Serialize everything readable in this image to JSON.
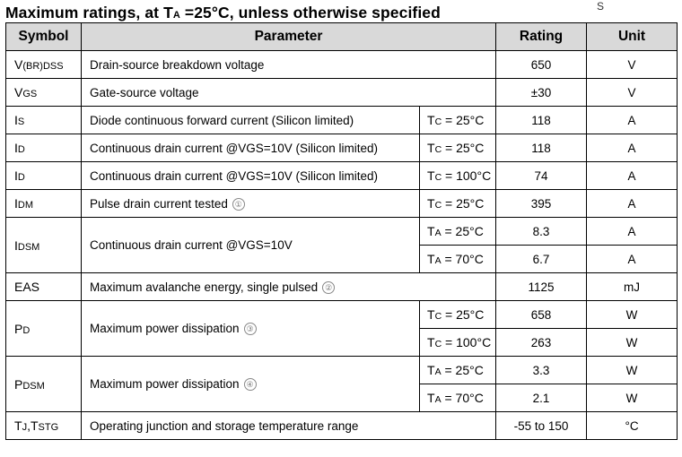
{
  "title": {
    "prefix": "Maximum ratings, at T",
    "sub": "A",
    "suffix": " =25°C, unless otherwise specified"
  },
  "corner_mark": "S",
  "headers": {
    "symbol": "Symbol",
    "parameter": "Parameter",
    "rating": "Rating",
    "unit": "Unit"
  },
  "rows": [
    {
      "sym": "V",
      "sym_sub": "(BR)DSS",
      "param": "Drain-source breakdown voltage",
      "rating": "650",
      "unit": "V"
    },
    {
      "sym": "V",
      "sym_sub": "GS",
      "param": "Gate-source voltage",
      "rating": "±30",
      "unit": "V"
    },
    {
      "sym": "I",
      "sym_sub": "S",
      "param": "Diode continuous forward current (Silicon limited)",
      "cond": "T",
      "cond_sub": "C",
      "cond_val": " = 25°C",
      "rating": "118",
      "unit": "A"
    },
    {
      "sym": "I",
      "sym_sub": "D",
      "param": "Continuous drain current @VGS=10V (Silicon limited)",
      "cond": "T",
      "cond_sub": "C",
      "cond_val": " = 25°C",
      "rating": "118",
      "unit": "A"
    },
    {
      "sym": "I",
      "sym_sub": "D",
      "param": "Continuous drain current @VGS=10V (Silicon limited)",
      "cond": "T",
      "cond_sub": "C",
      "cond_val": " = 100°C",
      "rating": "74",
      "unit": "A"
    },
    {
      "sym": "I",
      "sym_sub": "DM",
      "param": "Pulse drain current tested",
      "note": "1",
      "cond": "T",
      "cond_sub": "C",
      "cond_val": " = 25°C",
      "rating": "395",
      "unit": "A"
    },
    {
      "sym": "I",
      "sym_sub": "DSM",
      "param": "Continuous drain current @VGS=10V",
      "sub_rows": [
        {
          "cond": "T",
          "cond_sub": "A",
          "cond_val": " = 25°C",
          "rating": "8.3",
          "unit": "A"
        },
        {
          "cond": "T",
          "cond_sub": "A",
          "cond_val": " = 70°C",
          "rating": "6.7",
          "unit": "A"
        }
      ]
    },
    {
      "sym": "EAS",
      "sym_sub": "",
      "param": "Maximum avalanche energy, single pulsed",
      "note": "2",
      "rating": "1125",
      "unit": "mJ"
    },
    {
      "sym": "P",
      "sym_sub": "D",
      "param": "Maximum power dissipation",
      "note": "3",
      "sub_rows": [
        {
          "cond": "T",
          "cond_sub": "C",
          "cond_val": " = 25°C",
          "rating": "658",
          "unit": "W"
        },
        {
          "cond": "T",
          "cond_sub": "C",
          "cond_val": " = 100°C",
          "rating": "263",
          "unit": "W"
        }
      ]
    },
    {
      "sym": "P",
      "sym_sub": "DSM",
      "param": "Maximum power dissipation",
      "note": "4",
      "sub_rows": [
        {
          "cond": "T",
          "cond_sub": "A",
          "cond_val": " = 25°C",
          "rating": "3.3",
          "unit": "W"
        },
        {
          "cond": "T",
          "cond_sub": "A",
          "cond_val": " = 70°C",
          "rating": "2.1",
          "unit": "W"
        }
      ]
    },
    {
      "sym": "T",
      "sym_sub": "J",
      "sym2": ",T",
      "sym2_sub": "STG",
      "param": "Operating junction and storage temperature range",
      "rating": "-55 to 150",
      "unit": "°C"
    }
  ]
}
